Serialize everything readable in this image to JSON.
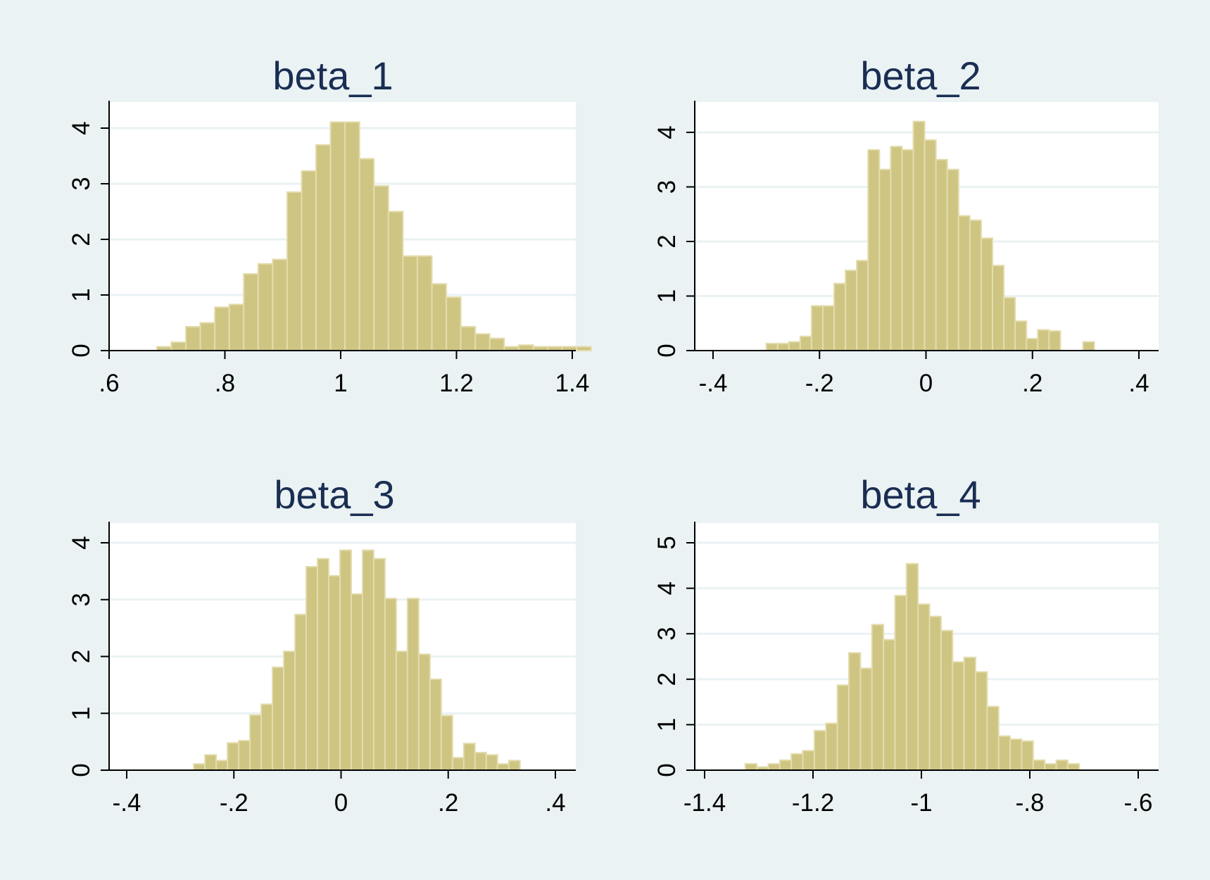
{
  "colors": {
    "background": "#eaf2f3",
    "plot_area": "#ffffff",
    "gridline": "#eaf2f3",
    "bar_fill": "#cfc582",
    "bar_stroke": "#e3dcae",
    "title": "#1a2e53",
    "axis": "#000000"
  },
  "chart_data": [
    {
      "type": "bar",
      "histogram": true,
      "title": "beta_1",
      "xlim": [
        0.6,
        1.4
      ],
      "ylim": [
        0,
        4
      ],
      "xticks": [
        0.6,
        0.8,
        1.0,
        1.2,
        1.4
      ],
      "xtick_labels": [
        ".6",
        ".8",
        "1",
        "1.2",
        "1.4"
      ],
      "yticks": [
        0,
        1,
        2,
        3,
        4
      ],
      "ytick_labels": [
        "0",
        "1",
        "2",
        "3",
        "4"
      ],
      "grid": true,
      "bin_start": 0.6825,
      "bin_width": 0.025,
      "values": [
        0.07,
        0.15,
        0.43,
        0.5,
        0.78,
        0.83,
        1.38,
        1.56,
        1.64,
        2.85,
        3.23,
        3.7,
        4.11,
        4.11,
        3.45,
        2.96,
        2.5,
        1.7,
        1.7,
        1.2,
        0.96,
        0.43,
        0.3,
        0.22,
        0.07,
        0.1,
        0.07,
        0.07,
        0.07,
        0.07
      ]
    },
    {
      "type": "bar",
      "histogram": true,
      "title": "beta_2",
      "xlim": [
        -0.4,
        0.4
      ],
      "ylim": [
        0,
        4
      ],
      "xticks": [
        -0.4,
        -0.2,
        0,
        0.2,
        0.4
      ],
      "xtick_labels": [
        "-.4",
        "-.2",
        "0",
        ".2",
        ".4"
      ],
      "yticks": [
        0,
        1,
        2,
        3,
        4
      ],
      "ytick_labels": [
        "0",
        "1",
        "2",
        "3",
        "4"
      ],
      "grid": true,
      "bin_start": -0.3,
      "bin_width": 0.02125,
      "values": [
        0.13,
        0.13,
        0.16,
        0.26,
        0.82,
        0.82,
        1.23,
        1.47,
        1.65,
        3.68,
        3.32,
        3.74,
        3.68,
        4.2,
        3.86,
        3.5,
        3.32,
        2.47,
        2.39,
        2.06,
        1.56,
        0.97,
        0.54,
        0.22,
        0.38,
        0.36,
        0,
        0,
        0.16
      ]
    },
    {
      "type": "bar",
      "histogram": true,
      "title": "beta_3",
      "xlim": [
        -0.4,
        0.4
      ],
      "ylim": [
        0,
        4
      ],
      "xticks": [
        -0.4,
        -0.2,
        0,
        0.2,
        0.4
      ],
      "xtick_labels": [
        "-.4",
        "-.2",
        "0",
        ".2",
        ".4"
      ],
      "yticks": [
        0,
        1,
        2,
        3,
        4
      ],
      "ytick_labels": [
        "0",
        "1",
        "2",
        "3",
        "4"
      ],
      "grid": true,
      "bin_start": -0.275,
      "bin_width": 0.021,
      "values": [
        0.11,
        0.27,
        0.17,
        0.48,
        0.52,
        0.97,
        1.16,
        1.81,
        2.09,
        2.74,
        3.58,
        3.72,
        3.42,
        3.87,
        3.1,
        3.87,
        3.72,
        3.02,
        2.09,
        3.02,
        2.04,
        1.6,
        0.96,
        0.22,
        0.47,
        0.31,
        0.27,
        0.11,
        0.17
      ]
    },
    {
      "type": "bar",
      "histogram": true,
      "title": "beta_4",
      "xlim": [
        -1.4,
        -0.6
      ],
      "ylim": [
        0,
        5
      ],
      "xticks": [
        -1.4,
        -1.2,
        -1.0,
        -0.8,
        -0.6
      ],
      "xtick_labels": [
        "-1.4",
        "-1.2",
        "-1",
        "-.8",
        "-.6"
      ],
      "yticks": [
        0,
        1,
        2,
        3,
        4,
        5
      ],
      "ytick_labels": [
        "0",
        "1",
        "2",
        "3",
        "4",
        "5"
      ],
      "grid": true,
      "bin_start": -1.325,
      "bin_width": 0.02125,
      "values": [
        0.14,
        0.07,
        0.14,
        0.22,
        0.36,
        0.43,
        0.87,
        1.03,
        1.87,
        2.58,
        2.24,
        3.2,
        2.87,
        3.84,
        4.54,
        3.65,
        3.38,
        3.07,
        2.38,
        2.48,
        2.16,
        1.4,
        0.75,
        0.68,
        0.64,
        0.22,
        0.14,
        0.22,
        0.14
      ]
    }
  ]
}
